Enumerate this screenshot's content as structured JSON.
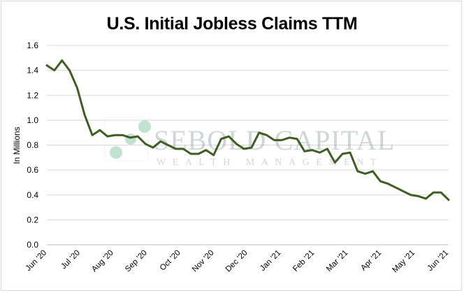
{
  "chart_data": {
    "type": "line",
    "title": "U.S. Initial Jobless Claims TTM",
    "ylabel": "In Millions",
    "xlabel": "",
    "ylim": [
      0,
      1.6
    ],
    "y_ticks": [
      "0.0",
      "0.2",
      "0.4",
      "0.6",
      "0.8",
      "1.0",
      "1.2",
      "1.4",
      "1.6"
    ],
    "x_tick_labels": [
      "Jun '20",
      "Jul '20",
      "Aug '20",
      "Sep '20",
      "Oct '20",
      "Nov '20",
      "Dec '20",
      "Jan '21",
      "Feb '21",
      "Mar '21",
      "Apr '21",
      "May '21",
      "Jun '21"
    ],
    "grid": true,
    "legend": "none",
    "line_color": "#3f5f22",
    "series": [
      {
        "values": [
          1.44,
          1.4,
          1.48,
          1.4,
          1.26,
          1.04,
          0.88,
          0.92,
          0.87,
          0.88,
          0.88,
          0.86,
          0.87,
          0.81,
          0.78,
          0.83,
          0.8,
          0.77,
          0.77,
          0.73,
          0.73,
          0.76,
          0.72,
          0.85,
          0.87,
          0.81,
          0.77,
          0.78,
          0.9,
          0.88,
          0.84,
          0.84,
          0.86,
          0.85,
          0.75,
          0.76,
          0.74,
          0.77,
          0.66,
          0.73,
          0.74,
          0.59,
          0.57,
          0.59,
          0.51,
          0.49,
          0.46,
          0.43,
          0.4,
          0.39,
          0.37,
          0.42,
          0.42,
          0.36
        ]
      }
    ]
  },
  "watermark": {
    "brand": "SEBOLD CAPITAL",
    "tagline": "WEALTH MANAGEMENT"
  }
}
